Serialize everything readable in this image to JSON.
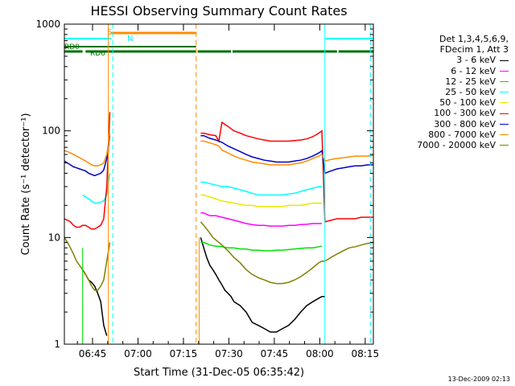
{
  "chart_data": {
    "type": "line",
    "title": "HESSI Observing Summary Count Rates",
    "xlabel": "Start Time (31-Dec-05 06:35:42)",
    "ylabel": "Count Rate (s⁻¹ detector⁻¹)",
    "yscale": "log",
    "ylim": [
      1,
      1000
    ],
    "xlim_minutes": [
      0,
      102
    ],
    "x_ticks": [
      {
        "minute": 9.3,
        "label": "06:45"
      },
      {
        "minute": 24.3,
        "label": "07:00"
      },
      {
        "minute": 39.3,
        "label": "07:15"
      },
      {
        "minute": 54.3,
        "label": "07:30"
      },
      {
        "minute": 69.3,
        "label": "07:45"
      },
      {
        "minute": 84.3,
        "label": "08:00"
      },
      {
        "minute": 99.3,
        "label": "08:15"
      }
    ],
    "y_ticks": [
      {
        "value": 1,
        "label": "1"
      },
      {
        "value": 10,
        "label": "10"
      },
      {
        "value": 100,
        "label": "100"
      },
      {
        "value": 1000,
        "label": "1000"
      }
    ],
    "legend_header": [
      "Det 1,3,4,5,6,9,",
      "FDecim 1, Att 3"
    ],
    "series": [
      {
        "name": "3 - 6 keV",
        "color": "#000000",
        "x": [
          6,
          7,
          8,
          9,
          10,
          11,
          12,
          13,
          14,
          45,
          46,
          47,
          48,
          49,
          50,
          51,
          52,
          53,
          54,
          55,
          56,
          58,
          60,
          62,
          64,
          66,
          68,
          70,
          72,
          74,
          76,
          78,
          80,
          82,
          84,
          85,
          86
        ],
        "y": [
          5,
          4.5,
          4,
          3.8,
          3.5,
          3,
          2.5,
          1.5,
          1.2,
          10,
          8,
          6.5,
          5.5,
          5,
          4.5,
          4,
          3.6,
          3.2,
          3,
          2.8,
          2.5,
          2.3,
          2,
          1.6,
          1.5,
          1.4,
          1.3,
          1.3,
          1.4,
          1.5,
          1.7,
          2,
          2.3,
          2.5,
          2.7,
          2.8,
          2.8
        ]
      },
      {
        "name": "6 - 12 keV",
        "color": "#ff00ff",
        "x": [
          45,
          46,
          48,
          50,
          52,
          54,
          56,
          58,
          60,
          62,
          64,
          66,
          68,
          70,
          72,
          74,
          76,
          78,
          80,
          82,
          84,
          85
        ],
        "y": [
          17,
          17,
          16,
          16,
          15.5,
          15,
          14.5,
          14,
          13.5,
          13.2,
          13,
          13,
          12.8,
          12.8,
          12.8,
          13,
          13,
          13.2,
          13.3,
          13.5,
          13.5,
          13.5
        ]
      },
      {
        "name": "12 - 25 keV",
        "color": "#00e000",
        "x": [
          45,
          46,
          48,
          50,
          52,
          54,
          56,
          58,
          60,
          62,
          64,
          66,
          68,
          70,
          72,
          74,
          76,
          78,
          80,
          82,
          84,
          85
        ],
        "y": [
          9,
          9,
          8.5,
          8.3,
          8.2,
          8,
          8,
          7.8,
          7.8,
          7.6,
          7.6,
          7.5,
          7.5,
          7.6,
          7.6,
          7.7,
          7.8,
          7.9,
          8,
          8,
          8.2,
          8.3
        ]
      },
      {
        "name": "25 - 50 keV",
        "color": "#00ffff",
        "x": [
          6,
          7,
          8,
          9,
          10,
          11,
          12,
          13,
          14,
          15,
          45,
          46,
          48,
          50,
          52,
          54,
          56,
          58,
          60,
          62,
          64,
          66,
          68,
          70,
          72,
          74,
          76,
          78,
          80,
          82,
          84,
          85
        ],
        "y": [
          25,
          24,
          23,
          22,
          21,
          21,
          21.5,
          22,
          25,
          40,
          33,
          33,
          32,
          31,
          30,
          30,
          29,
          28,
          27,
          26,
          25,
          25,
          25,
          25,
          25,
          25.5,
          26,
          27,
          28,
          29,
          30,
          30
        ]
      },
      {
        "name": "50 - 100 keV",
        "color": "#e8e800",
        "x": [
          45,
          46,
          48,
          50,
          52,
          54,
          56,
          58,
          60,
          62,
          64,
          66,
          68,
          70,
          72,
          74,
          76,
          78,
          80,
          82,
          84,
          85
        ],
        "y": [
          25,
          25,
          24,
          23,
          22,
          21.5,
          21,
          20.5,
          20,
          20,
          19.5,
          19.5,
          19.5,
          19.5,
          19.5,
          20,
          20,
          20,
          20.5,
          21,
          21,
          21
        ]
      },
      {
        "name": "100 - 300 keV",
        "color": "#ff0000",
        "x": [
          0,
          1,
          2,
          3,
          4,
          5,
          6,
          7,
          8,
          9,
          10,
          11,
          12,
          13,
          14,
          15,
          45,
          46,
          48,
          50,
          51,
          52,
          54,
          56,
          58,
          60,
          62,
          64,
          66,
          68,
          70,
          72,
          74,
          76,
          78,
          80,
          82,
          84,
          85,
          86,
          88,
          90,
          92,
          94,
          96,
          98,
          100,
          102
        ],
        "y": [
          15,
          14.5,
          14,
          13,
          12.5,
          12.5,
          13,
          13,
          12.5,
          12,
          12,
          12.5,
          13,
          15,
          30,
          150,
          95,
          95,
          92,
          90,
          80,
          120,
          110,
          100,
          95,
          90,
          87,
          84,
          82,
          80,
          80,
          80,
          80,
          81,
          82,
          84,
          88,
          95,
          100,
          14,
          14.5,
          15,
          15,
          15,
          15,
          15.5,
          15.5,
          15.5
        ]
      },
      {
        "name": "300 - 800 keV",
        "color": "#0000c8",
        "x": [
          0,
          1,
          2,
          3,
          4,
          5,
          6,
          7,
          8,
          9,
          10,
          11,
          12,
          13,
          14,
          15,
          45,
          46,
          48,
          50,
          52,
          54,
          56,
          58,
          60,
          62,
          64,
          66,
          68,
          70,
          72,
          74,
          76,
          78,
          80,
          82,
          84,
          85,
          86,
          88,
          90,
          92,
          94,
          96,
          98,
          100,
          102
        ],
        "y": [
          52,
          50,
          48,
          46,
          45,
          44,
          43,
          42,
          40,
          39,
          38,
          39,
          40,
          43,
          55,
          90,
          90,
          90,
          85,
          82,
          78,
          72,
          68,
          64,
          60,
          57,
          55,
          53,
          52,
          51,
          51,
          51,
          52,
          53,
          55,
          58,
          62,
          65,
          40,
          42,
          44,
          45,
          46,
          47,
          47,
          48,
          48
        ]
      },
      {
        "name": "800 - 7000 keV",
        "color": "#ff8c00",
        "x": [
          0,
          1,
          2,
          3,
          4,
          5,
          6,
          7,
          8,
          9,
          10,
          11,
          12,
          13,
          14,
          15,
          45,
          46,
          48,
          50,
          51,
          52,
          54,
          56,
          58,
          60,
          62,
          64,
          66,
          68,
          70,
          72,
          74,
          76,
          78,
          80,
          82,
          84,
          85,
          86,
          88,
          90,
          92,
          94,
          96,
          98,
          100,
          102
        ],
        "y": [
          65,
          64,
          62,
          60,
          58,
          56,
          54,
          52,
          50,
          48,
          47,
          47,
          48,
          50,
          60,
          95,
          80,
          80,
          77,
          74,
          72,
          66,
          62,
          58,
          55,
          53,
          51,
          50,
          49,
          48,
          48,
          48,
          48,
          49,
          50,
          52,
          55,
          58,
          60,
          52,
          54,
          55,
          56,
          57,
          58,
          58,
          58,
          59
        ]
      },
      {
        "name": "7000 - 20000 keV",
        "color": "#808000",
        "x": [
          0,
          1,
          2,
          3,
          4,
          5,
          6,
          7,
          8,
          9,
          10,
          11,
          12,
          13,
          14,
          15,
          45,
          46,
          47,
          48,
          49,
          50,
          51,
          52,
          54,
          56,
          58,
          60,
          62,
          64,
          66,
          68,
          70,
          72,
          74,
          76,
          78,
          80,
          82,
          84,
          85,
          86,
          88,
          90,
          92,
          94,
          96,
          98,
          100,
          102
        ],
        "y": [
          10,
          9,
          8,
          7,
          6,
          5.5,
          5,
          4.5,
          4,
          3.5,
          3.2,
          3.2,
          3.5,
          4,
          6,
          9,
          14,
          13,
          12,
          11,
          10,
          9.5,
          9,
          8.5,
          7.5,
          6.5,
          5.8,
          5,
          4.5,
          4.2,
          4,
          3.8,
          3.7,
          3.7,
          3.8,
          4,
          4.3,
          4.7,
          5.2,
          5.8,
          6,
          6,
          6.5,
          7,
          7.5,
          8,
          8.2,
          8.5,
          8.8,
          9
        ]
      }
    ],
    "grid": false,
    "legend_position": "right"
  },
  "annotations": {
    "S": "S",
    "N": "N",
    "RD0": "RD0",
    "RD6": "RD6"
  },
  "footer_stamp": "13-Dec-2009 02:13"
}
